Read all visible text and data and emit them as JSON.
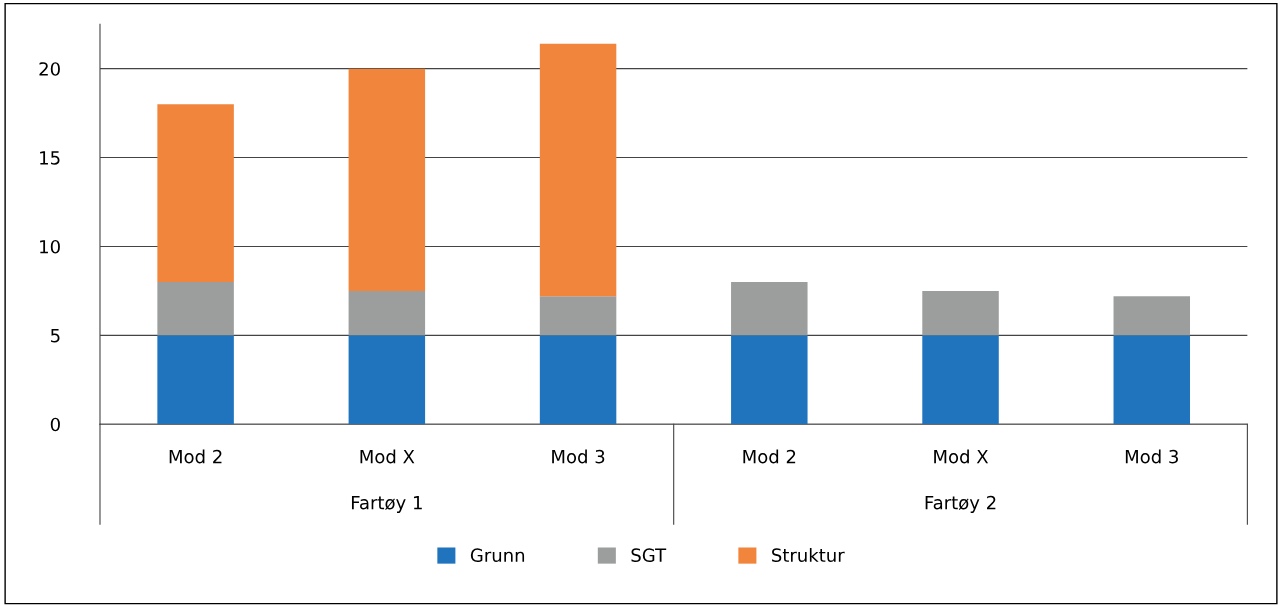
{
  "chart_data": {
    "type": "bar",
    "stacked": true,
    "categories": [
      "Mod 2",
      "Mod X",
      "Mod 3",
      "Mod 2",
      "Mod X",
      "Mod 3"
    ],
    "annotations": [
      {
        "text": "Fartøy 1"
      },
      {
        "text": "Fartøy 2"
      }
    ],
    "series": [
      {
        "name": "Grunn",
        "color": "#1f74bd",
        "values": [
          5,
          5,
          5,
          5,
          5,
          5
        ]
      },
      {
        "name": "SGT",
        "color": "#9c9e9e",
        "values": [
          3,
          2.5,
          2.2,
          3,
          2.5,
          2.2
        ]
      },
      {
        "name": "Struktur",
        "color": "#f2853c",
        "values": [
          10,
          12.5,
          14.2,
          null,
          null,
          null
        ]
      }
    ],
    "ylim": [
      0,
      22.5
    ],
    "yticks": [
      0,
      5,
      10,
      15,
      20
    ],
    "grid": "y",
    "legend": "bottom"
  }
}
